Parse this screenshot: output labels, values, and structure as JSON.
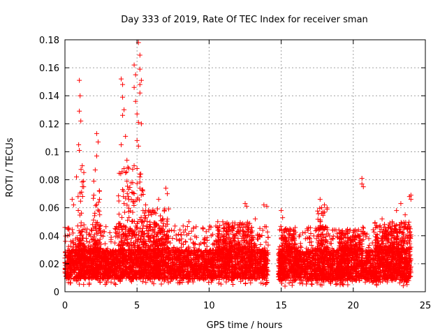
{
  "chart_data": {
    "type": "scatter",
    "title": "Day 333 of 2019, Rate Of TEC Index for receiver sman",
    "xlabel": "GPS time / hours",
    "ylabel": "ROTI / TECUs",
    "xlim": [
      0,
      25
    ],
    "ylim": [
      0,
      0.18
    ],
    "x_ticks": [
      0,
      5,
      10,
      15,
      20,
      25
    ],
    "x_tick_labels": [
      "0",
      "5",
      "10",
      "15",
      "20",
      "25"
    ],
    "y_ticks": [
      0,
      0.02,
      0.04,
      0.06,
      0.08,
      0.1,
      0.12,
      0.14,
      0.16,
      0.18
    ],
    "y_tick_labels": [
      "0",
      "0.02",
      "0.04",
      "0.06",
      "0.08",
      "0.1",
      "0.12",
      "0.14",
      "0.16",
      "0.18"
    ],
    "grid": true,
    "marker": "+",
    "color": "#ff0000",
    "series": [
      {
        "name": "ROTI",
        "segments": [
          {
            "x_start": 0.0,
            "x_end": 14.1,
            "baseline_low": 0.005,
            "baseline_high": 0.035
          },
          {
            "x_start": 14.8,
            "x_end": 24.0,
            "baseline_low": 0.004,
            "baseline_high": 0.035
          }
        ],
        "highlights": [
          {
            "x": 1.0,
            "y": 0.151
          },
          {
            "x": 1.05,
            "y": 0.14
          },
          {
            "x": 1.0,
            "y": 0.129
          },
          {
            "x": 1.1,
            "y": 0.122
          },
          {
            "x": 0.95,
            "y": 0.105
          },
          {
            "x": 1.0,
            "y": 0.101
          },
          {
            "x": 1.2,
            "y": 0.09
          },
          {
            "x": 0.8,
            "y": 0.082
          },
          {
            "x": 1.3,
            "y": 0.075
          },
          {
            "x": 2.2,
            "y": 0.113
          },
          {
            "x": 2.3,
            "y": 0.107
          },
          {
            "x": 2.2,
            "y": 0.097
          },
          {
            "x": 2.1,
            "y": 0.087
          },
          {
            "x": 2.0,
            "y": 0.069
          },
          {
            "x": 2.4,
            "y": 0.066
          },
          {
            "x": 2.0,
            "y": 0.079
          },
          {
            "x": 0.5,
            "y": 0.066
          },
          {
            "x": 0.6,
            "y": 0.062
          },
          {
            "x": 3.9,
            "y": 0.152
          },
          {
            "x": 4.0,
            "y": 0.148
          },
          {
            "x": 4.0,
            "y": 0.139
          },
          {
            "x": 4.1,
            "y": 0.13
          },
          {
            "x": 4.0,
            "y": 0.126
          },
          {
            "x": 4.2,
            "y": 0.111
          },
          {
            "x": 3.9,
            "y": 0.105
          },
          {
            "x": 4.3,
            "y": 0.094
          },
          {
            "x": 4.1,
            "y": 0.088
          },
          {
            "x": 4.2,
            "y": 0.085
          },
          {
            "x": 4.3,
            "y": 0.079
          },
          {
            "x": 4.0,
            "y": 0.073
          },
          {
            "x": 4.4,
            "y": 0.068
          },
          {
            "x": 4.1,
            "y": 0.063
          },
          {
            "x": 4.8,
            "y": 0.162
          },
          {
            "x": 4.9,
            "y": 0.155
          },
          {
            "x": 4.8,
            "y": 0.146
          },
          {
            "x": 4.9,
            "y": 0.136
          },
          {
            "x": 5.1,
            "y": 0.178
          },
          {
            "x": 5.2,
            "y": 0.169
          },
          {
            "x": 5.2,
            "y": 0.159
          },
          {
            "x": 5.3,
            "y": 0.151
          },
          {
            "x": 5.2,
            "y": 0.148
          },
          {
            "x": 5.2,
            "y": 0.142
          },
          {
            "x": 5.0,
            "y": 0.127
          },
          {
            "x": 5.1,
            "y": 0.121
          },
          {
            "x": 5.3,
            "y": 0.12
          },
          {
            "x": 5.0,
            "y": 0.108
          },
          {
            "x": 5.1,
            "y": 0.104
          },
          {
            "x": 5.0,
            "y": 0.088
          },
          {
            "x": 5.2,
            "y": 0.082
          },
          {
            "x": 4.7,
            "y": 0.078
          },
          {
            "x": 5.4,
            "y": 0.072
          },
          {
            "x": 4.6,
            "y": 0.066
          },
          {
            "x": 5.6,
            "y": 0.062
          },
          {
            "x": 5.8,
            "y": 0.057
          },
          {
            "x": 6.0,
            "y": 0.055
          },
          {
            "x": 6.5,
            "y": 0.066
          },
          {
            "x": 6.3,
            "y": 0.056
          },
          {
            "x": 7.0,
            "y": 0.074
          },
          {
            "x": 7.1,
            "y": 0.07
          },
          {
            "x": 6.9,
            "y": 0.058
          },
          {
            "x": 8.6,
            "y": 0.05
          },
          {
            "x": 8.2,
            "y": 0.047
          },
          {
            "x": 12.5,
            "y": 0.063
          },
          {
            "x": 12.6,
            "y": 0.061
          },
          {
            "x": 13.8,
            "y": 0.062
          },
          {
            "x": 14.0,
            "y": 0.061
          },
          {
            "x": 12.0,
            "y": 0.048
          },
          {
            "x": 11.0,
            "y": 0.045
          },
          {
            "x": 10.6,
            "y": 0.05
          },
          {
            "x": 13.2,
            "y": 0.052
          },
          {
            "x": 15.0,
            "y": 0.058
          },
          {
            "x": 15.1,
            "y": 0.053
          },
          {
            "x": 16.8,
            "y": 0.045
          },
          {
            "x": 16.5,
            "y": 0.042
          },
          {
            "x": 17.7,
            "y": 0.066
          },
          {
            "x": 17.8,
            "y": 0.06
          },
          {
            "x": 17.9,
            "y": 0.057
          },
          {
            "x": 18.0,
            "y": 0.062
          },
          {
            "x": 17.7,
            "y": 0.05
          },
          {
            "x": 17.9,
            "y": 0.044
          },
          {
            "x": 20.6,
            "y": 0.081
          },
          {
            "x": 20.6,
            "y": 0.077
          },
          {
            "x": 20.7,
            "y": 0.075
          },
          {
            "x": 21.5,
            "y": 0.049
          },
          {
            "x": 22.0,
            "y": 0.052
          },
          {
            "x": 23.0,
            "y": 0.058
          },
          {
            "x": 23.3,
            "y": 0.063
          },
          {
            "x": 23.6,
            "y": 0.055
          },
          {
            "x": 24.0,
            "y": 0.069
          },
          {
            "x": 24.0,
            "y": 0.066
          },
          {
            "x": 23.9,
            "y": 0.068
          }
        ]
      }
    ]
  }
}
